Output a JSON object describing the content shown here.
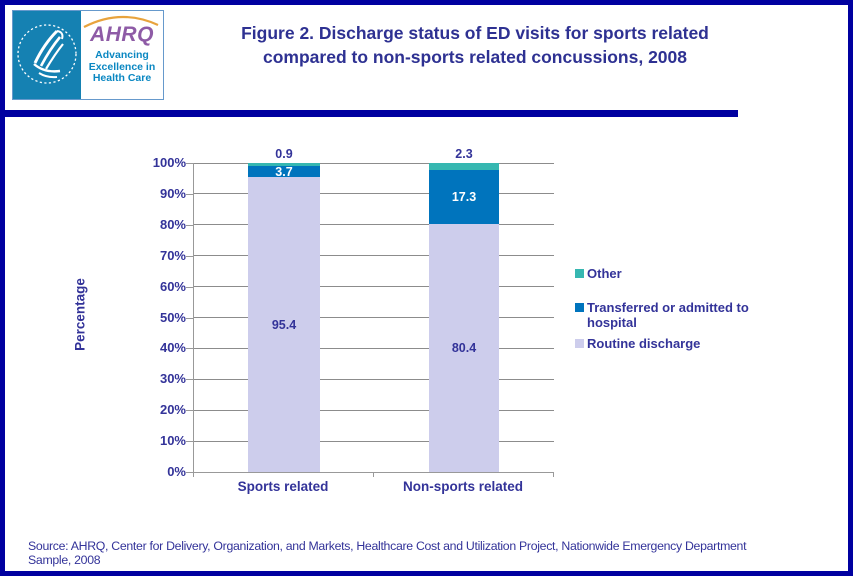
{
  "header": {
    "logo": {
      "seal": "hhs-eagle-seal",
      "org": "AHRQ",
      "tagline_lines": [
        "Advancing",
        "Excellence in",
        "Health Care"
      ]
    },
    "title_line1": "Figure 2. Discharge status of ED visits for sports related",
    "title_line2": "compared to non-sports related concussions, 2008"
  },
  "chart_data": {
    "type": "bar",
    "stacked": true,
    "title": "Figure 2. Discharge status of ED visits for sports related compared to non-sports related concussions, 2008",
    "categories": [
      "Sports related",
      "Non-sports related"
    ],
    "series": [
      {
        "name": "Routine discharge",
        "color": "#CDCDEC",
        "label_color": "#333399",
        "label_outside": false,
        "values": [
          95.4,
          80.4
        ]
      },
      {
        "name": "Transferred or admitted to hospital",
        "color": "#0074BD",
        "label_color": "#FFFFFF",
        "label_outside": false,
        "values": [
          3.7,
          17.3
        ]
      },
      {
        "name": "Other",
        "color": "#36B7B1",
        "label_color": "#333399",
        "label_outside": true,
        "values": [
          0.9,
          2.3
        ]
      }
    ],
    "legend": [
      "Other",
      "Transferred or admitted to hospital",
      "Routine discharge"
    ],
    "legend_position": "right",
    "xlabel": "",
    "ylabel": "Percentage",
    "ylim": [
      0,
      100
    ],
    "ytick_step": 10,
    "ytick_suffix": "%",
    "grid": true
  },
  "footer": {
    "source": "Source: AHRQ, Center for Delivery, Organization, and Markets, Healthcare Cost and Utilization Project, Nationwide Emergency Department Sample, 2008"
  },
  "colors": {
    "frame_navy": "#0000A0",
    "title_navy": "#2E3192",
    "text_navy": "#333399",
    "grid_grey": "#8C8C8C",
    "seal_blue": "#1581B2",
    "ahrq_purple": "#8E5BA6",
    "tagline_blue": "#0A87C2",
    "arc_orange": "#E8A33D"
  }
}
